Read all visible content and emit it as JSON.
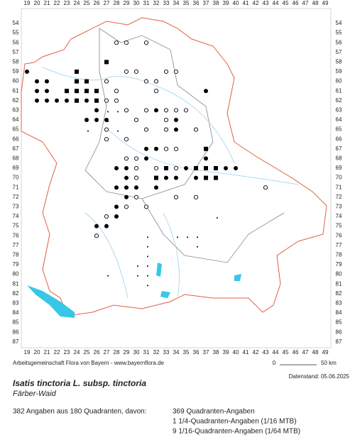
{
  "map": {
    "x_labels": [
      "19",
      "20",
      "21",
      "22",
      "23",
      "24",
      "25",
      "26",
      "27",
      "28",
      "29",
      "30",
      "31",
      "32",
      "33",
      "34",
      "35",
      "36",
      "37",
      "38",
      "39",
      "40",
      "41",
      "42",
      "43",
      "44",
      "45",
      "46",
      "47",
      "48",
      "49"
    ],
    "y_labels": [
      "54",
      "55",
      "56",
      "57",
      "58",
      "59",
      "60",
      "61",
      "62",
      "63",
      "64",
      "65",
      "66",
      "67",
      "68",
      "69",
      "70",
      "71",
      "72",
      "73",
      "74",
      "75",
      "76",
      "77",
      "78",
      "79",
      "80",
      "81",
      "82",
      "83",
      "84",
      "85",
      "86",
      "87"
    ],
    "credit": "Arbeitsgemeinschaft Flora von Bayern - www.bayernflora.de",
    "scale_start": "0",
    "scale_end": "50 km",
    "date": "Datenstand: 05.06.2025",
    "title": "Isatis tinctoria L. subsp. tinctoria",
    "common_name": "Färber-Waid",
    "summary": "382 Angaben aus 180 Quadranten, davon:",
    "details": [
      "369 Quadranten-Angaben",
      "1 1/4-Quadranten-Angaben (1/16 MTB)",
      "9 1/16-Quadranten-Angaben (1/64 MTB)"
    ]
  }
}
